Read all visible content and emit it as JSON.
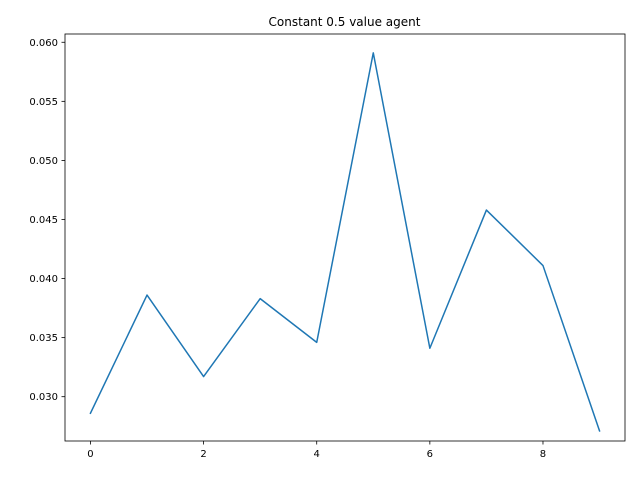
{
  "chart_data": {
    "type": "line",
    "title": "Constant 0.5 value agent",
    "xlabel": "",
    "ylabel": "",
    "x": [
      0,
      1,
      2,
      3,
      4,
      5,
      6,
      7,
      8,
      9
    ],
    "series": [
      {
        "values": [
          0.0286,
          0.0386,
          0.0317,
          0.0383,
          0.0346,
          0.0591,
          0.0341,
          0.0458,
          0.0411,
          0.0271
        ],
        "color": "#1f77b4"
      }
    ],
    "xlim": [
      -0.45,
      9.45
    ],
    "ylim": [
      0.02625,
      0.0607
    ],
    "xticks": [
      0,
      2,
      4,
      6,
      8
    ],
    "xtick_labels": [
      "0",
      "2",
      "4",
      "6",
      "8"
    ],
    "yticks": [
      0.03,
      0.035,
      0.04,
      0.045,
      0.05,
      0.055,
      0.06
    ],
    "ytick_labels": [
      "0.030",
      "0.035",
      "0.040",
      "0.045",
      "0.050",
      "0.055",
      "0.060"
    ],
    "grid": false,
    "legend": "none"
  }
}
